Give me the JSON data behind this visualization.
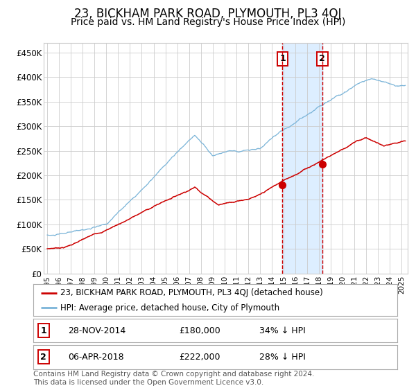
{
  "title": "23, BICKHAM PARK ROAD, PLYMOUTH, PL3 4QJ",
  "subtitle": "Price paid vs. HM Land Registry's House Price Index (HPI)",
  "title_fontsize": 12,
  "subtitle_fontsize": 10,
  "ylabel_ticks": [
    "£0",
    "£50K",
    "£100K",
    "£150K",
    "£200K",
    "£250K",
    "£300K",
    "£350K",
    "£400K",
    "£450K"
  ],
  "ytick_values": [
    0,
    50000,
    100000,
    150000,
    200000,
    250000,
    300000,
    350000,
    400000,
    450000
  ],
  "ylim": [
    0,
    470000
  ],
  "xlim_start": 1994.7,
  "xlim_end": 2025.5,
  "hpi_color": "#7ab4d8",
  "price_color": "#cc0000",
  "sale1_date": 2014.91,
  "sale1_value": 180000,
  "sale2_date": 2018.27,
  "sale2_value": 222000,
  "shade_color": "#ddeeff",
  "vline_color": "#cc0000",
  "grid_color": "#cccccc",
  "bg_color": "#ffffff",
  "legend_line1": "23, BICKHAM PARK ROAD, PLYMOUTH, PL3 4QJ (detached house)",
  "legend_line2": "HPI: Average price, detached house, City of Plymouth",
  "table_row1_num": "1",
  "table_row1_date": "28-NOV-2014",
  "table_row1_price": "£180,000",
  "table_row1_hpi": "34% ↓ HPI",
  "table_row2_num": "2",
  "table_row2_date": "06-APR-2018",
  "table_row2_price": "£222,000",
  "table_row2_hpi": "28% ↓ HPI",
  "footer": "Contains HM Land Registry data © Crown copyright and database right 2024.\nThis data is licensed under the Open Government Licence v3.0.",
  "footer_fontsize": 7.5,
  "years": [
    1995,
    1996,
    1997,
    1998,
    1999,
    2000,
    2001,
    2002,
    2003,
    2004,
    2005,
    2006,
    2007,
    2008,
    2009,
    2010,
    2011,
    2012,
    2013,
    2014,
    2015,
    2016,
    2017,
    2018,
    2019,
    2020,
    2021,
    2022,
    2023,
    2024,
    2025
  ]
}
